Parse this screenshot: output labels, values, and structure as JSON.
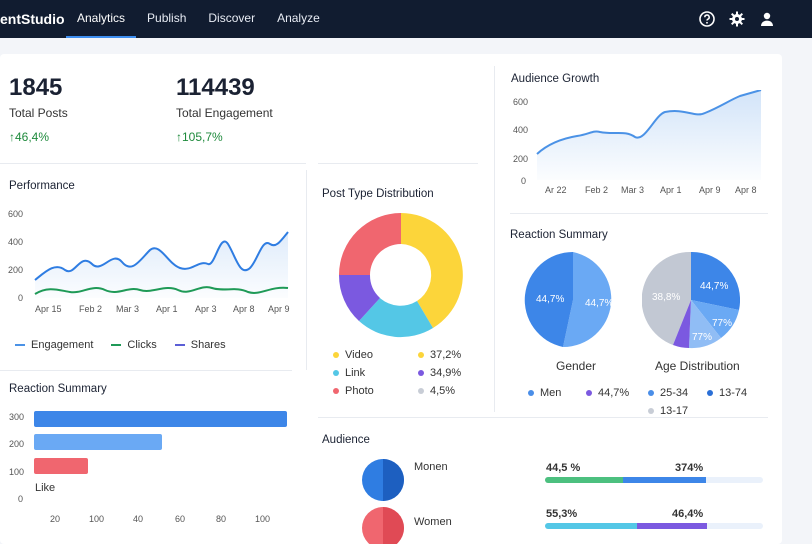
{
  "app": {
    "brand": "entStudio"
  },
  "nav": {
    "items": [
      {
        "label": "Analytics",
        "active": true
      },
      {
        "label": "Publish",
        "active": false
      },
      {
        "label": "Discover",
        "active": false
      },
      {
        "label": "Analyze",
        "active": false
      }
    ]
  },
  "header_icons": [
    "help-icon",
    "gear-icon",
    "user-icon"
  ],
  "stats": [
    {
      "value": "1845",
      "label": "Total Posts",
      "delta": "↑46,4%"
    },
    {
      "value": "114439",
      "label": "Total Engagement",
      "delta": "↑105,7%"
    }
  ],
  "audience_growth": {
    "title": "Audience Growth",
    "yticks": [
      "600",
      "400",
      "200",
      "0"
    ],
    "xticks": [
      "Ar 22",
      "Feb 2",
      "Mar 3",
      "Apr 1",
      "Apr 9",
      "Apr 8"
    ]
  },
  "performance": {
    "title": "Performance",
    "yticks": [
      "600",
      "400",
      "200",
      "0"
    ],
    "xticks": [
      "Apr 15",
      "Feb 2",
      "Mar 3",
      "Apr 1",
      "Apr 3",
      "Apr 8",
      "Apr 9"
    ],
    "legend": [
      "Engagement",
      "Clicks",
      "Shares"
    ]
  },
  "post_type": {
    "title": "Post Type Distribution",
    "legend_left": [
      {
        "label": "Video",
        "color": "#fcd53a"
      },
      {
        "label": "Link",
        "color": "#54c7e6"
      },
      {
        "label": "Photo",
        "color": "#f0666f"
      }
    ],
    "legend_right": [
      {
        "label": "37,2%",
        "color": "#fcd53a"
      },
      {
        "label": "34,9%",
        "color": "#7b59e0"
      },
      {
        "label": "4,5%",
        "color": "#c8cdd6"
      }
    ]
  },
  "reaction_summary_right": {
    "title": "Reaction Summary",
    "gender_label": "Gender",
    "age_label": "Age Distribution",
    "gender_slices": [
      "44,7%",
      "44,7%"
    ],
    "age_slices": [
      "38,8%",
      "44,7%",
      "77%",
      "77%"
    ],
    "legend": [
      {
        "label": "Men",
        "color": "#4a8ee8"
      },
      {
        "label": "44,7%",
        "color": "#7b59e0"
      },
      {
        "label": "25-34",
        "color": "#4a8ee8"
      },
      {
        "label": "13-74",
        "color": "#2a6fd6"
      },
      {
        "label": "13-17",
        "color": "#c8cdd6"
      }
    ]
  },
  "reaction_summary_left": {
    "title": "Reaction  Summary",
    "yticks": [
      "300",
      "200",
      "100",
      "0"
    ],
    "xticks": [
      "20",
      "100",
      "40",
      "60",
      "80",
      "100"
    ],
    "bar_label": "Like"
  },
  "audience": {
    "title": "Audience",
    "items": [
      {
        "label": "Monen",
        "color": "#2f7de2"
      },
      {
        "label": "Women",
        "color": "#f0666f"
      }
    ]
  },
  "progress_rows": [
    {
      "left": "44,5 %",
      "right": "374%"
    },
    {
      "left": "55,3%",
      "right": "46,4%"
    }
  ]
}
